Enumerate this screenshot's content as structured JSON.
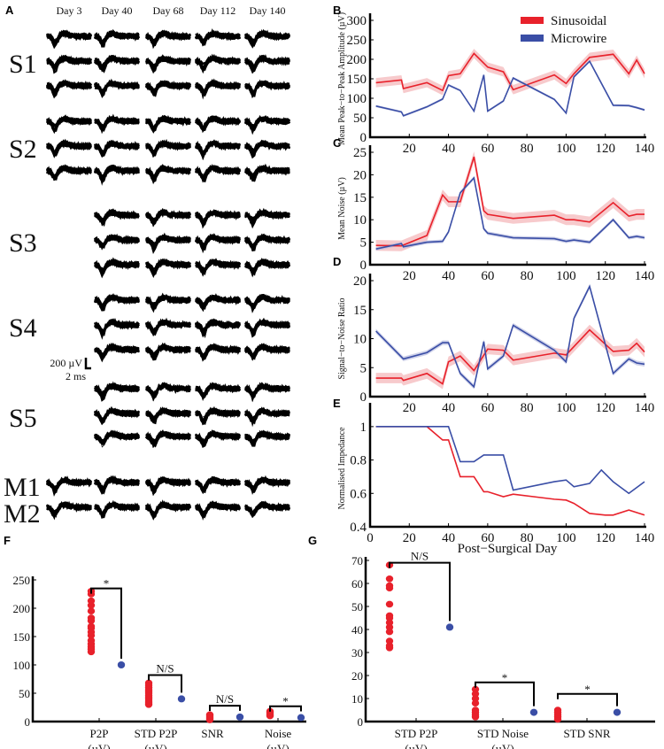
{
  "panel_labels": {
    "A": "A",
    "B": "B",
    "C": "C",
    "D": "D",
    "E": "E",
    "F": "F",
    "G": "G"
  },
  "colors": {
    "sinusoidal": "#e8212b",
    "microwire": "#3a4ea6",
    "sin_band": "#f4b3b6",
    "mic_band": "#b9bde0"
  },
  "waveforms": {
    "days": [
      "Day 3",
      "Day 40",
      "Day 68",
      "Day 112",
      "Day 140"
    ],
    "units": [
      {
        "label": "S1",
        "rows": 3,
        "day_indices": [
          0,
          1,
          2,
          3,
          4
        ]
      },
      {
        "label": "S2",
        "rows": 3,
        "day_indices": [
          0,
          1,
          2,
          3,
          4
        ]
      },
      {
        "label": "S3",
        "rows": 3,
        "day_indices": [
          1,
          2,
          3,
          4
        ]
      },
      {
        "label": "S4",
        "rows": 3,
        "day_indices": [
          1,
          2,
          3,
          4
        ]
      },
      {
        "label": "S5",
        "rows": 3,
        "day_indices": [
          1,
          2,
          3,
          4
        ]
      },
      {
        "label": "M1",
        "rows": 1,
        "day_indices": [
          0,
          1,
          2,
          3,
          4
        ]
      },
      {
        "label": "M2",
        "rows": 1,
        "day_indices": [
          0,
          1,
          2,
          3,
          4
        ]
      }
    ],
    "scale_bar": {
      "voltage": "200 µV",
      "time": "2 ms"
    }
  },
  "legend": [
    {
      "name": "Sinusoidal",
      "key": "sinusoidal"
    },
    {
      "name": "Microwire",
      "key": "microwire"
    }
  ],
  "chart_data": [
    {
      "id": "B",
      "type": "line",
      "ylabel": "Mean Peak−to−Peak Amplitude (µV)",
      "xlim": [
        0,
        140
      ],
      "ylim": [
        0,
        300
      ],
      "yticks": [
        0,
        50,
        100,
        150,
        200,
        250,
        300
      ],
      "xticks": [
        20,
        40,
        60,
        80,
        100,
        120,
        140
      ],
      "series": [
        {
          "name": "Sinusoidal",
          "x": [
            3,
            16,
            17,
            29,
            37,
            40,
            46,
            53,
            60,
            68,
            73,
            94,
            100,
            104,
            112,
            124,
            132,
            136,
            140
          ],
          "y": [
            140,
            147,
            125,
            140,
            120,
            158,
            163,
            215,
            180,
            168,
            122,
            160,
            138,
            163,
            205,
            213,
            163,
            198,
            163
          ],
          "ci": 12
        },
        {
          "name": "Microwire",
          "x": [
            3,
            16,
            17,
            29,
            37,
            40,
            46,
            53,
            58,
            60,
            68,
            73,
            94,
            100,
            104,
            112,
            124,
            132,
            136,
            140
          ],
          "y": [
            80,
            65,
            55,
            78,
            98,
            134,
            120,
            67,
            160,
            67,
            93,
            152,
            97,
            62,
            155,
            195,
            82,
            81,
            76,
            70
          ],
          "ci": 3
        }
      ]
    },
    {
      "id": "C",
      "type": "line",
      "ylabel": "Mean Noise (µV)",
      "xlim": [
        0,
        140
      ],
      "ylim": [
        0,
        25
      ],
      "yticks": [
        0,
        5,
        10,
        15,
        20,
        25
      ],
      "xticks": [
        20,
        40,
        60,
        80,
        100,
        120,
        140
      ],
      "series": [
        {
          "name": "Sinusoidal",
          "x": [
            3,
            16,
            29,
            37,
            40,
            46,
            53,
            58,
            60,
            73,
            94,
            100,
            104,
            112,
            124,
            132,
            136,
            140
          ],
          "y": [
            4.3,
            4.2,
            6.5,
            15.5,
            14,
            14,
            24,
            12,
            11.2,
            10.3,
            11,
            10,
            10,
            9.5,
            13.8,
            10.8,
            11.2,
            11.2
          ],
          "ci": 1.2
        },
        {
          "name": "Microwire",
          "x": [
            3,
            16,
            17,
            29,
            37,
            40,
            46,
            53,
            58,
            60,
            73,
            94,
            100,
            104,
            112,
            124,
            132,
            136,
            140
          ],
          "y": [
            3.5,
            4.7,
            4,
            5,
            5.2,
            7.3,
            16,
            19.3,
            8,
            7,
            6,
            5.8,
            5.2,
            5.5,
            5,
            10,
            6,
            6.3,
            6
          ],
          "ci": 0.4
        }
      ]
    },
    {
      "id": "D",
      "type": "line",
      "ylabel": "Signal−to−Noise Ratio",
      "xlim": [
        0,
        140
      ],
      "ylim": [
        0,
        20
      ],
      "yticks": [
        0,
        5,
        10,
        15,
        20
      ],
      "xticks": [
        20,
        40,
        60,
        80,
        100,
        120,
        140
      ],
      "series": [
        {
          "name": "Sinusoidal",
          "x": [
            3,
            16,
            17,
            29,
            37,
            40,
            46,
            53,
            60,
            68,
            73,
            94,
            100,
            112,
            124,
            132,
            136,
            140
          ],
          "y": [
            3.2,
            3.2,
            2.8,
            4,
            2.2,
            6,
            7,
            4.5,
            8.2,
            8,
            6.3,
            7.5,
            7.2,
            11.5,
            7.8,
            8,
            9.2,
            7.7
          ],
          "ci": 0.9
        },
        {
          "name": "Microwire",
          "x": [
            3,
            17,
            29,
            37,
            40,
            46,
            53,
            58,
            60,
            68,
            73,
            94,
            100,
            104,
            112,
            124,
            132,
            136,
            140
          ],
          "y": [
            11.3,
            6.5,
            7.6,
            9.3,
            9.3,
            4,
            1.7,
            9.5,
            4.8,
            7,
            12.3,
            8,
            6,
            13.5,
            19,
            4,
            6.5,
            5.8,
            5.6
          ],
          "ci": 0.4
        }
      ]
    },
    {
      "id": "E",
      "type": "line",
      "ylabel": "Normalised Impedance",
      "xlabel": "Post−Surgical Day",
      "xlim": [
        0,
        140
      ],
      "ylim": [
        0.4,
        1.1
      ],
      "yticks": [
        0.4,
        0.6,
        0.8,
        1
      ],
      "xticks": [
        0,
        20,
        40,
        60,
        80,
        100,
        120,
        140
      ],
      "series": [
        {
          "name": "Sinusoidal",
          "x": [
            3,
            29,
            37,
            40,
            46,
            53,
            58,
            60,
            68,
            73,
            94,
            100,
            104,
            112,
            120,
            124,
            132,
            140
          ],
          "y": [
            1,
            1,
            0.92,
            0.92,
            0.7,
            0.7,
            0.61,
            0.61,
            0.58,
            0.595,
            0.565,
            0.56,
            0.54,
            0.48,
            0.47,
            0.47,
            0.5,
            0.47
          ],
          "ci": 0
        },
        {
          "name": "Microwire",
          "x": [
            3,
            40,
            46,
            53,
            58,
            68,
            73,
            94,
            100,
            104,
            112,
            118,
            124,
            132,
            140
          ],
          "y": [
            1,
            1,
            0.79,
            0.79,
            0.83,
            0.83,
            0.62,
            0.67,
            0.68,
            0.64,
            0.66,
            0.74,
            0.67,
            0.6,
            0.67
          ],
          "ci": 0
        }
      ]
    },
    {
      "id": "F",
      "type": "scatter",
      "ylim": [
        0,
        250
      ],
      "yticks": [
        0,
        50,
        100,
        150,
        200,
        250
      ],
      "groups": [
        {
          "label": [
            "P2P",
            "(µV)"
          ],
          "sinusoidal": [
            123,
            128,
            132,
            137,
            143,
            152,
            158,
            165,
            168,
            178,
            183,
            195,
            205,
            213,
            225,
            230
          ],
          "microwire": [
            100
          ],
          "sig": "*",
          "bracket": 235
        },
        {
          "label": [
            "STD P2P",
            "(µV)"
          ],
          "sinusoidal": [
            30,
            33,
            36,
            40,
            43,
            46,
            50,
            53,
            56,
            60,
            64,
            68
          ],
          "microwire": [
            40
          ],
          "sig": "N/S",
          "bracket": 82
        },
        {
          "label": [
            "SNR",
            ""
          ],
          "sinusoidal": [
            3,
            5,
            7,
            9,
            11,
            12
          ],
          "microwire": [
            8
          ],
          "sig": "N/S",
          "bracket": 28
        },
        {
          "label": [
            "Noise",
            "(µV)"
          ],
          "sinusoidal": [
            10,
            12,
            14,
            16,
            18
          ],
          "microwire": [
            7
          ],
          "sig": "*",
          "bracket": 27
        }
      ]
    },
    {
      "id": "G",
      "type": "scatter",
      "ylim": [
        0,
        70
      ],
      "yticks": [
        0,
        10,
        20,
        30,
        40,
        50,
        60,
        70
      ],
      "groups": [
        {
          "label": [
            "STD P2P",
            "(µV)"
          ],
          "sinusoidal": [
            32,
            33,
            35,
            39,
            41,
            43,
            45,
            46,
            51,
            58,
            59,
            62,
            68
          ],
          "microwire": [
            41
          ],
          "sig": "N/S",
          "bracket": 69
        },
        {
          "label": [
            "STD Noise",
            "(µV)"
          ],
          "sinusoidal": [
            2,
            3,
            4,
            5,
            8,
            10,
            12,
            14
          ],
          "microwire": [
            4
          ],
          "sig": "*",
          "bracket": 17
        },
        {
          "label": [
            "STD SNR",
            ""
          ],
          "sinusoidal": [
            1,
            2,
            3,
            4,
            5
          ],
          "microwire": [
            4
          ],
          "sig": "*",
          "bracket": 12
        }
      ]
    }
  ]
}
